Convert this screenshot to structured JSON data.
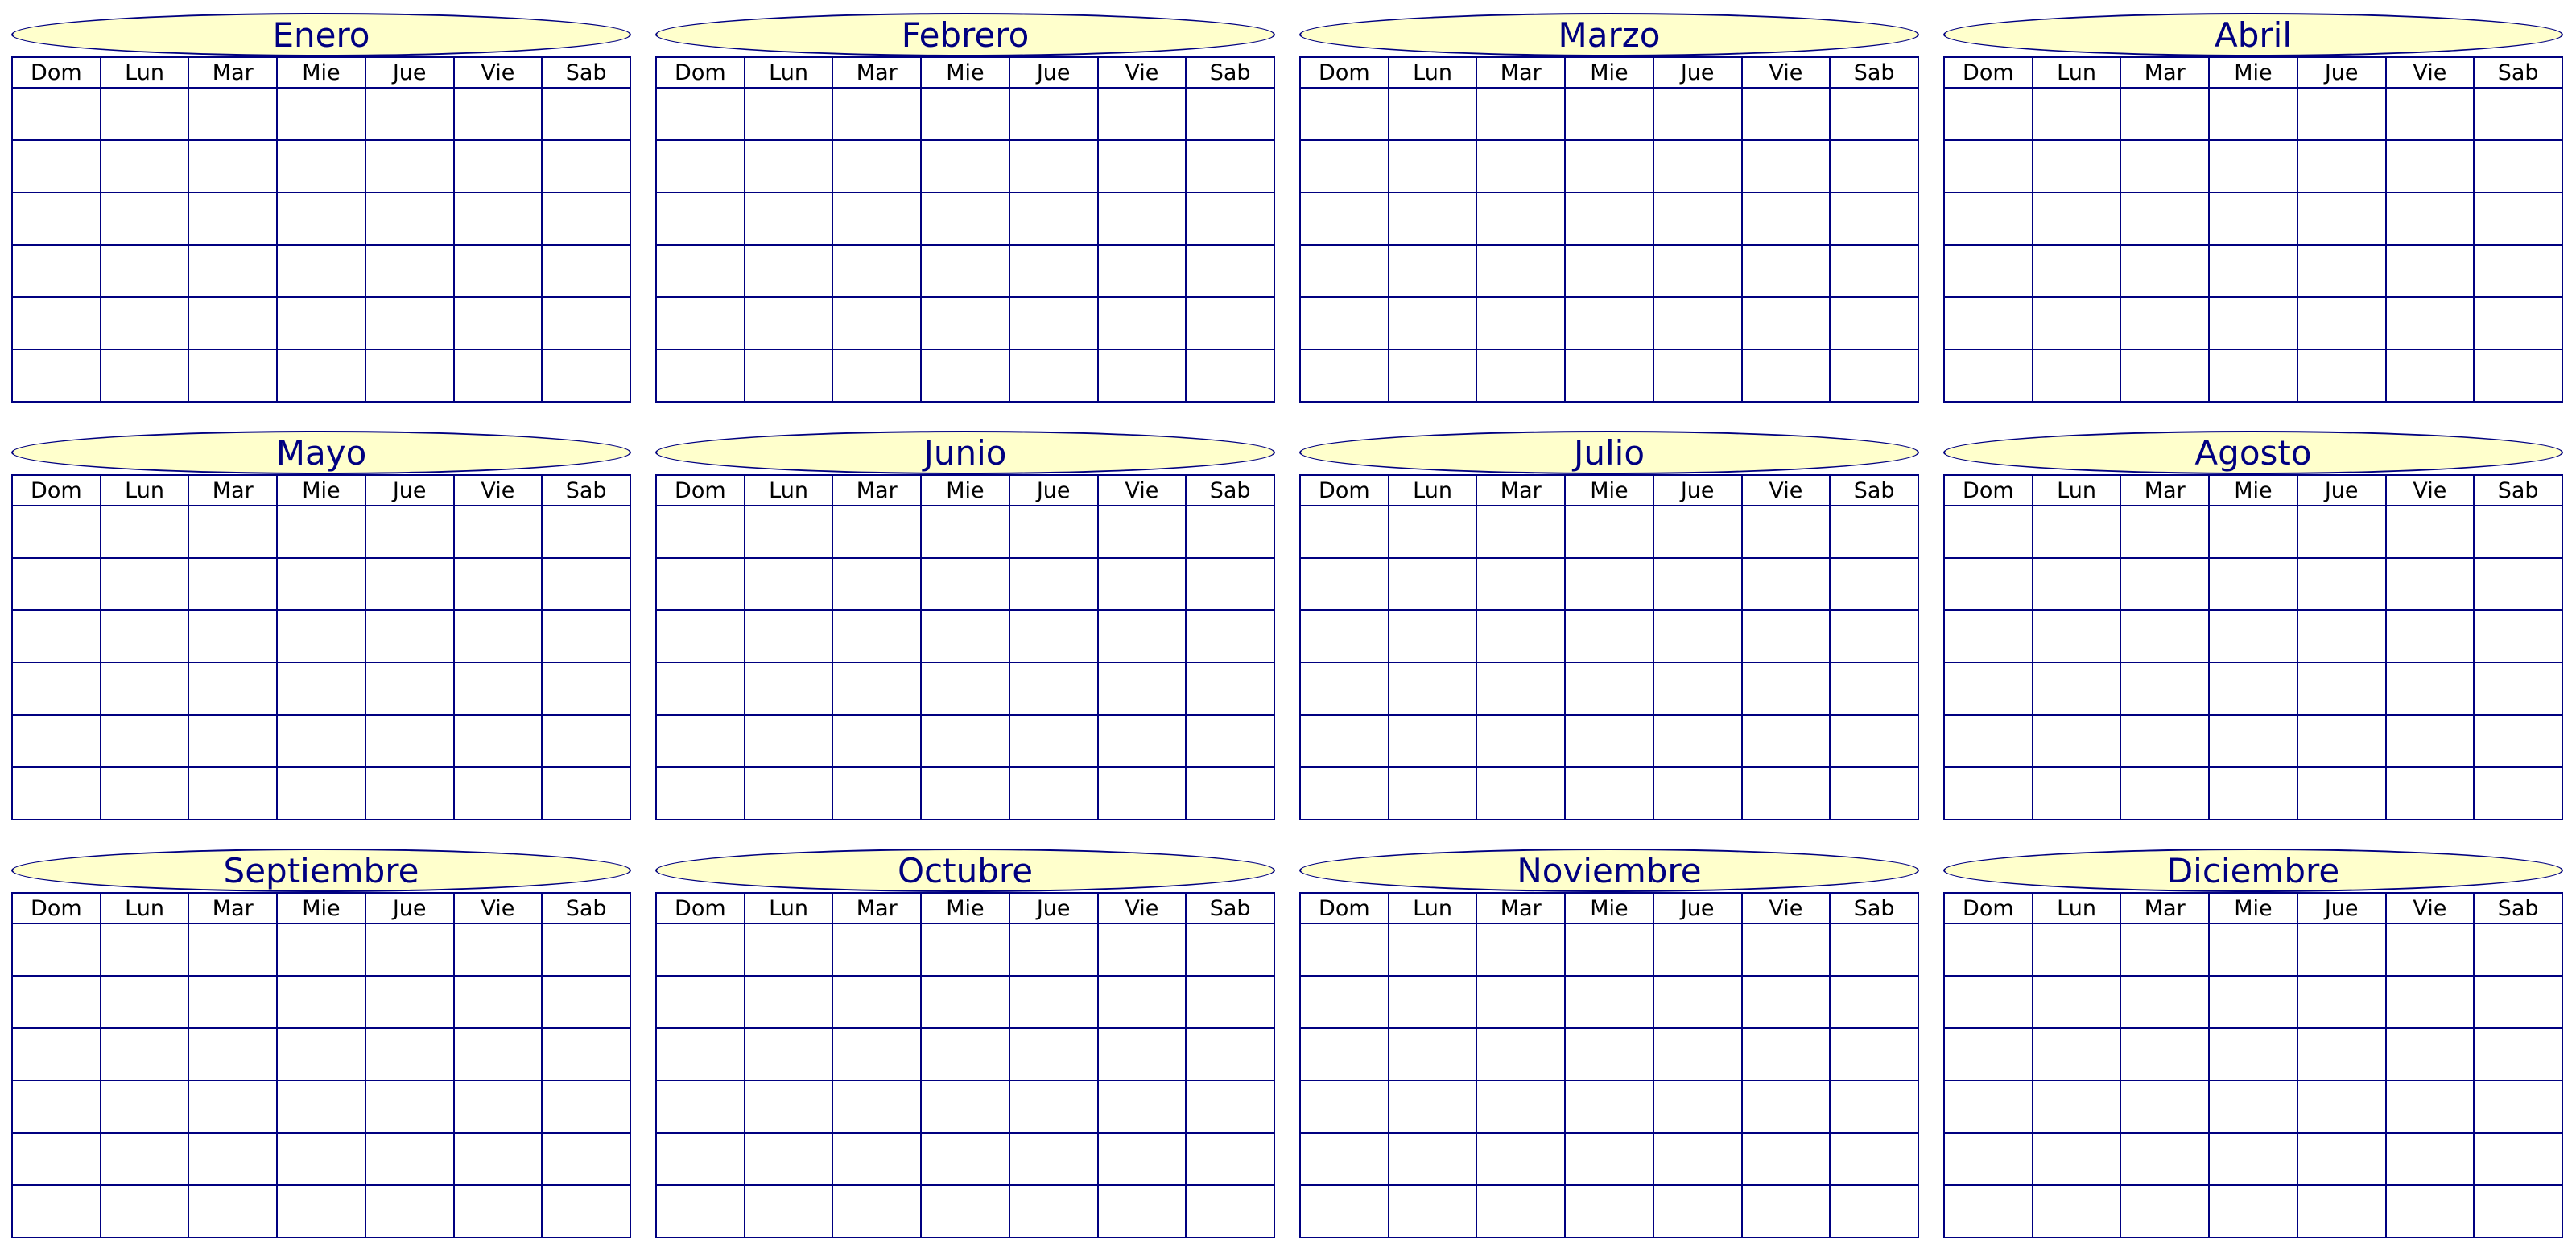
{
  "months": [
    "Enero",
    "Febrero",
    "Marzo",
    "Abril",
    "Mayo",
    "Junio",
    "Julio",
    "Agosto",
    "Septiembre",
    "Octubre",
    "Noviembre",
    "Diciembre"
  ],
  "weekdays": [
    "Dom",
    "Lun",
    "Mar",
    "Mie",
    "Jue",
    "Vie",
    "Sab"
  ],
  "weeks_per_month": 6,
  "colors": {
    "border": "#000080",
    "title_fill": "#ffffcc",
    "title_text": "#000080"
  }
}
